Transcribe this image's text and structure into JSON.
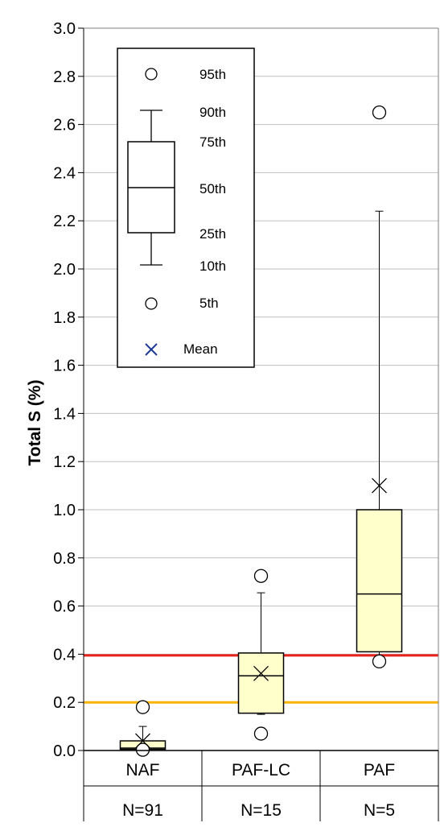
{
  "chart_data": {
    "type": "boxplot",
    "ylabel": "Total S (%)",
    "ylim": [
      0,
      3.0
    ],
    "ytick_step": 0.2,
    "grid": true,
    "categories": [
      "NAF",
      "PAF-LC",
      "PAF"
    ],
    "counts": [
      "N=91",
      "N=15",
      "N=5"
    ],
    "boxes": [
      {
        "category": "NAF",
        "p5": 0.003,
        "p10": 0.005,
        "p25": 0.005,
        "p50": 0.01,
        "p75": 0.04,
        "p90": 0.1,
        "p95": 0.18,
        "mean": 0.04
      },
      {
        "category": "PAF-LC",
        "p5": 0.07,
        "p10": 0.15,
        "p25": 0.155,
        "p50": 0.31,
        "p75": 0.405,
        "p90": 0.655,
        "p95": 0.725,
        "mean": 0.32
      },
      {
        "category": "PAF",
        "p5": 0.37,
        "p10": 0.39,
        "p25": 0.41,
        "p50": 0.65,
        "p75": 1.0,
        "p90": 2.24,
        "p95": 2.65,
        "mean": 1.1
      }
    ],
    "reference_lines": [
      {
        "value": 0.395,
        "color": "#e8221b"
      },
      {
        "value": 0.2,
        "color": "#f7b500"
      }
    ],
    "legend": {
      "placement": "top-left",
      "items": [
        {
          "marker": "circle",
          "label": "95th"
        },
        {
          "marker": "whisker-top",
          "label": "90th"
        },
        {
          "marker": "box-top",
          "label": "75th"
        },
        {
          "marker": "median",
          "label": "50th"
        },
        {
          "marker": "box-bottom",
          "label": "25th"
        },
        {
          "marker": "whisker-bottom",
          "label": "10th"
        },
        {
          "marker": "circle",
          "label": "5th"
        },
        {
          "marker": "x",
          "label": "Mean"
        }
      ]
    },
    "colors": {
      "box_fill": "#ffffcc",
      "grid": "#bfbfbf",
      "legend_x": "#1f3a93"
    }
  }
}
